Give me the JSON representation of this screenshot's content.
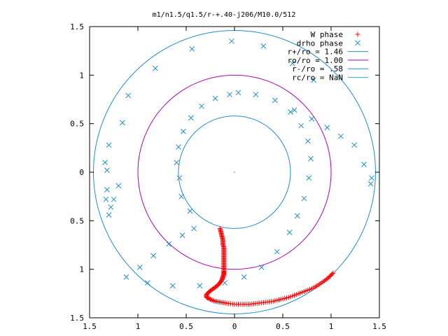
{
  "chart_data": {
    "type": "scatter",
    "title": "m1/n1.5/q1.5/r-+.40-j206/M10.0/512",
    "xlim": [
      -1.5,
      1.5
    ],
    "ylim": [
      -1.5,
      1.5
    ],
    "x_ticks": [
      {
        "value": -1.5,
        "label": "1.5"
      },
      {
        "value": -1.0,
        "label": "1"
      },
      {
        "value": -0.5,
        "label": "0.5"
      },
      {
        "value": 0.0,
        "label": "0"
      },
      {
        "value": 0.5,
        "label": "0.5"
      },
      {
        "value": 1.0,
        "label": "1"
      },
      {
        "value": 1.5,
        "label": "1.5"
      }
    ],
    "y_ticks": [
      {
        "value": 1.5,
        "label": "1.5"
      },
      {
        "value": 1.0,
        "label": "1"
      },
      {
        "value": 0.5,
        "label": "0.5"
      },
      {
        "value": 0.0,
        "label": "0"
      },
      {
        "value": -0.5,
        "label": "0.5"
      },
      {
        "value": -1.0,
        "label": "1"
      },
      {
        "value": -1.5,
        "label": "1.5"
      }
    ],
    "grid": false,
    "legend_position": "top-right",
    "series": [
      {
        "name": "W phase",
        "kind": "points",
        "marker": "+",
        "color": "#ff0000",
        "points": [
          [
            -0.15,
            -0.58
          ],
          [
            -0.14,
            -0.62
          ],
          [
            -0.13,
            -0.66
          ],
          [
            -0.12,
            -0.7
          ],
          [
            -0.12,
            -0.74
          ],
          [
            -0.11,
            -0.78
          ],
          [
            -0.11,
            -0.82
          ],
          [
            -0.11,
            -0.86
          ],
          [
            -0.11,
            -0.9
          ],
          [
            -0.11,
            -0.94
          ],
          [
            -0.11,
            -0.98
          ],
          [
            -0.11,
            -1.02
          ],
          [
            -0.11,
            -1.05
          ],
          [
            -0.12,
            -1.08
          ],
          [
            -0.13,
            -1.11
          ],
          [
            -0.15,
            -1.14
          ],
          [
            -0.18,
            -1.17
          ],
          [
            -0.22,
            -1.2
          ],
          [
            -0.26,
            -1.23
          ],
          [
            -0.29,
            -1.26
          ],
          [
            -0.29,
            -1.29
          ],
          [
            -0.25,
            -1.31
          ],
          [
            -0.2,
            -1.33
          ],
          [
            -0.14,
            -1.34
          ],
          [
            -0.08,
            -1.35
          ],
          [
            0.0,
            -1.36
          ],
          [
            0.08,
            -1.36
          ],
          [
            0.16,
            -1.36
          ],
          [
            0.24,
            -1.35
          ],
          [
            0.32,
            -1.34
          ],
          [
            0.4,
            -1.33
          ],
          [
            0.48,
            -1.31
          ],
          [
            0.56,
            -1.29
          ],
          [
            0.64,
            -1.26
          ],
          [
            0.72,
            -1.23
          ],
          [
            0.8,
            -1.2
          ],
          [
            0.87,
            -1.16
          ],
          [
            0.93,
            -1.12
          ],
          [
            0.98,
            -1.08
          ],
          [
            1.02,
            -1.04
          ]
        ]
      },
      {
        "name": "drho phase",
        "kind": "points",
        "marker": "x",
        "color": "#1e8fc8",
        "points": [
          [
            -0.05,
            0.8
          ],
          [
            -0.2,
            0.76
          ],
          [
            -0.34,
            0.68
          ],
          [
            -0.45,
            0.56
          ],
          [
            -0.53,
            0.42
          ],
          [
            -0.58,
            0.26
          ],
          [
            -0.6,
            0.1
          ],
          [
            -0.57,
            -0.06
          ],
          [
            -0.46,
            -0.4
          ],
          [
            -0.55,
            -0.25
          ],
          [
            -0.42,
            -0.58
          ],
          [
            -0.54,
            -0.65
          ],
          [
            -0.68,
            -0.74
          ],
          [
            -0.84,
            -0.86
          ],
          [
            -0.98,
            -0.98
          ],
          [
            -1.12,
            -1.08
          ],
          [
            -0.9,
            -1.14
          ],
          [
            -0.64,
            -1.17
          ],
          [
            -0.36,
            -1.17
          ],
          [
            -0.1,
            -1.14
          ],
          [
            0.1,
            -1.08
          ],
          [
            0.28,
            -0.98
          ],
          [
            0.44,
            -0.82
          ],
          [
            0.57,
            -0.62
          ],
          [
            0.65,
            -0.45
          ],
          [
            0.72,
            -0.27
          ],
          [
            0.77,
            -0.06
          ],
          [
            0.79,
            0.14
          ],
          [
            0.76,
            0.32
          ],
          [
            0.69,
            0.48
          ],
          [
            0.58,
            0.62
          ],
          [
            0.42,
            0.74
          ],
          [
            0.22,
            0.8
          ],
          [
            0.04,
            0.82
          ],
          [
            0.62,
            0.64
          ],
          [
            0.8,
            0.55
          ],
          [
            0.96,
            0.46
          ],
          [
            1.1,
            0.37
          ],
          [
            1.24,
            0.28
          ],
          [
            1.34,
            0.08
          ],
          [
            1.41,
            -0.12
          ],
          [
            1.42,
            -0.06
          ],
          [
            -1.2,
            -0.14
          ],
          [
            -1.32,
            0.02
          ],
          [
            -1.3,
            0.28
          ],
          [
            -1.25,
            -0.28
          ],
          [
            -1.32,
            -0.18
          ],
          [
            -1.3,
            -0.44
          ],
          [
            -1.33,
            -0.28
          ],
          [
            -1.16,
            0.51
          ],
          [
            -1.1,
            0.79
          ],
          [
            -0.82,
            1.07
          ],
          [
            -0.44,
            1.27
          ],
          [
            -0.03,
            1.35
          ],
          [
            0.3,
            1.3
          ],
          [
            0.6,
            1.12
          ],
          [
            0.82,
            0.95
          ],
          [
            -1.34,
            0.1
          ],
          [
            -1.28,
            -0.36
          ]
        ]
      },
      {
        "name": "r+/ro = 1.46",
        "kind": "circle",
        "r": 1.46,
        "color": "#1e8fc8"
      },
      {
        "name": "ro/ro = 1.00",
        "kind": "circle",
        "r": 1.0,
        "color": "#b000b0"
      },
      {
        "name": "r-/ro = .58",
        "kind": "circle",
        "r": 0.58,
        "color": "#1e8fc8"
      },
      {
        "name": "rc/ro = NaN",
        "kind": "circle",
        "r": null,
        "color": "#1ec8b4"
      }
    ],
    "annotations": [
      {
        "x": 0.0,
        "y": 0.0,
        "marker": "dot",
        "color": "#1e8fc8"
      }
    ]
  }
}
